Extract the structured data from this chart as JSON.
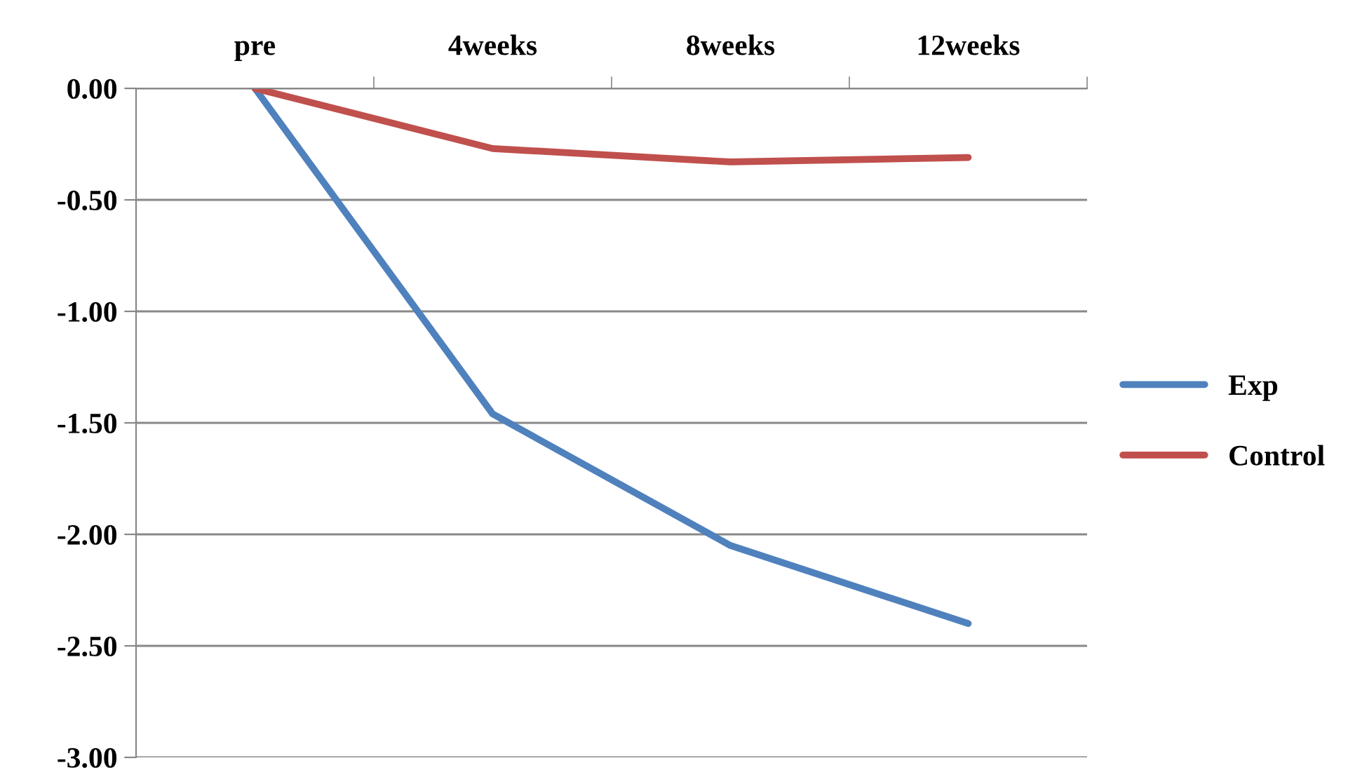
{
  "chart_data": {
    "type": "line",
    "categories": [
      "pre",
      "4weeks",
      "8weeks",
      "12weeks"
    ],
    "series": [
      {
        "name": "Exp",
        "color": "#4f81bd",
        "values": [
          0,
          -1.46,
          -2.05,
          -2.4
        ]
      },
      {
        "name": "Control",
        "color": "#c0504d",
        "values": [
          0,
          -0.27,
          -0.33,
          -0.31
        ]
      }
    ],
    "ylim": [
      -3,
      0
    ],
    "yticks": [
      {
        "value": 0,
        "label": "0.00"
      },
      {
        "value": -0.5,
        "label": "-0.50"
      },
      {
        "value": -1,
        "label": "-1.00"
      },
      {
        "value": -1.5,
        "label": "-1.50"
      },
      {
        "value": -2,
        "label": "-2.00"
      },
      {
        "value": -2.5,
        "label": "-2.50"
      },
      {
        "value": -3,
        "label": "-3.00"
      }
    ],
    "grid": "y",
    "legend": "right",
    "marker": "none",
    "line_style": "solid"
  }
}
